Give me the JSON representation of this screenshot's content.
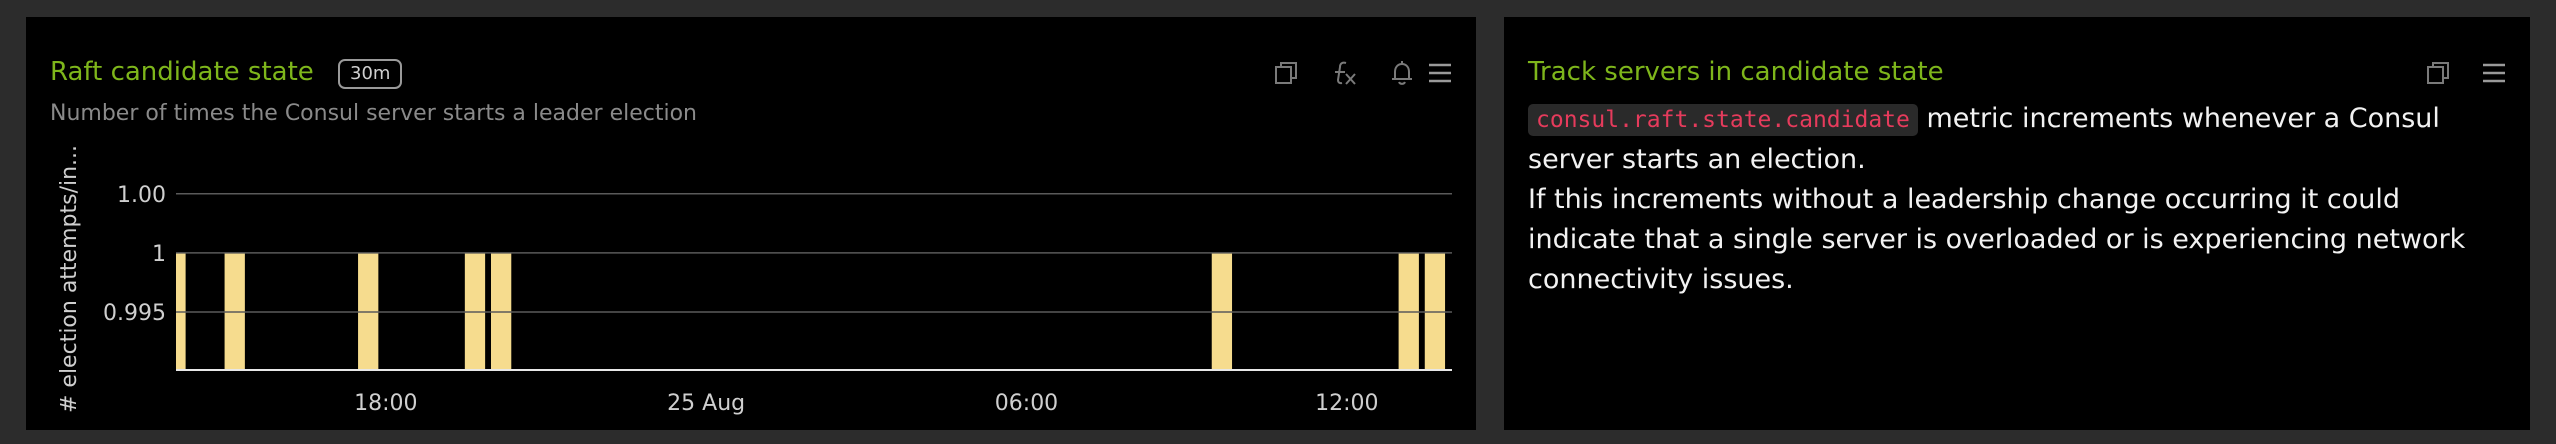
{
  "left_panel": {
    "title": "Raft candidate state",
    "badge": "30m",
    "subtitle": "Number of times the Consul server starts a leader election",
    "icons": [
      "copy-icon",
      "function-icon",
      "bell-icon",
      "menu-icon"
    ]
  },
  "right_panel": {
    "title": "Track servers in candidate state",
    "code": "consul.raft.state.candidate",
    "line1_rest": " metric increments whenever a Consul server starts an election.",
    "line2": "If this increments without a leadership change occurring it could indicate that a single server is overloaded or is experiencing network connectivity issues.",
    "icons": [
      "copy-icon",
      "menu-icon"
    ]
  },
  "colors": {
    "title": "#7eb61b",
    "bar": "#f6dc8e",
    "code": "#e63b5c",
    "background": "#000000"
  },
  "chart_data": {
    "type": "bar",
    "ylabel": "# election attempts/in...",
    "y_ticks": [
      "1.00",
      "1",
      "0.995"
    ],
    "y_tick_values": [
      1.005,
      1.0,
      0.995
    ],
    "ylim": [
      0.9901,
      1.0098
    ],
    "x_ticks": [
      "18:00",
      "25 Aug",
      "06:00",
      "12:00"
    ],
    "x_tick_hours": [
      18,
      24,
      30,
      36
    ],
    "xlim_hours": [
      14.07,
      37.97
    ],
    "bar_width_hours": 0.38,
    "series": [
      {
        "bars": [
          {
            "hour": 14.07,
            "width": 0.18,
            "value": 1
          },
          {
            "hour": 14.98,
            "value": 1
          },
          {
            "hour": 17.48,
            "value": 1
          },
          {
            "hour": 19.48,
            "value": 1
          },
          {
            "hour": 19.97,
            "value": 1
          },
          {
            "hour": 33.47,
            "value": 1
          },
          {
            "hour": 36.97,
            "value": 1
          },
          {
            "hour": 37.46,
            "value": 1
          }
        ]
      }
    ],
    "grid": true
  }
}
